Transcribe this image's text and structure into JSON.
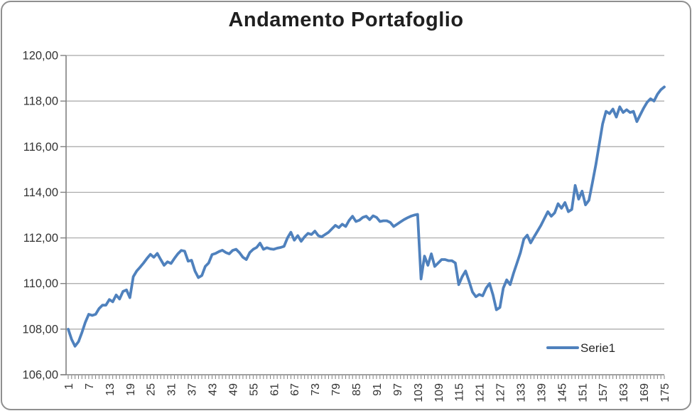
{
  "chart_data": {
    "type": "line",
    "title": "Andamento Portafoglio",
    "xlabel": "",
    "ylabel": "",
    "ylim": [
      106,
      120
    ],
    "grid": "horizontal",
    "legend_position": "inside-bottom-right",
    "x_tick_step": 6,
    "x_tick_labels": [
      "1",
      "7",
      "13",
      "19",
      "25",
      "31",
      "37",
      "43",
      "49",
      "55",
      "61",
      "67",
      "73",
      "79",
      "85",
      "91",
      "97",
      "103",
      "109",
      "115",
      "121",
      "127",
      "133",
      "139",
      "145",
      "151",
      "157",
      "163",
      "169",
      "175"
    ],
    "y_ticks": [
      {
        "value": 106,
        "label": "106,00"
      },
      {
        "value": 108,
        "label": "108,00"
      },
      {
        "value": 110,
        "label": "110,00"
      },
      {
        "value": 112,
        "label": "112,00"
      },
      {
        "value": 114,
        "label": "114,00"
      },
      {
        "value": 116,
        "label": "116,00"
      },
      {
        "value": 118,
        "label": "118,00"
      },
      {
        "value": 120,
        "label": "120,00"
      }
    ],
    "colors": {
      "series": "#4f81bd",
      "gridline": "#a6a6a6",
      "axis": "#808080",
      "text": "#333333",
      "title": "#1f1f1f",
      "frame_border": "#8f8f8f"
    },
    "series": [
      {
        "name": "Serie1",
        "color": "#4f81bd",
        "x_start": 1,
        "x_step": 1,
        "values": [
          108.0,
          107.55,
          107.25,
          107.45,
          107.85,
          108.3,
          108.65,
          108.6,
          108.65,
          108.9,
          109.05,
          109.05,
          109.3,
          109.2,
          109.5,
          109.32,
          109.65,
          109.72,
          109.38,
          110.3,
          110.55,
          110.72,
          110.9,
          111.1,
          111.28,
          111.15,
          111.32,
          111.05,
          110.8,
          110.95,
          110.88,
          111.1,
          111.3,
          111.45,
          111.42,
          110.98,
          111.02,
          110.55,
          110.26,
          110.35,
          110.75,
          110.9,
          111.27,
          111.32,
          111.4,
          111.46,
          111.36,
          111.3,
          111.45,
          111.5,
          111.35,
          111.15,
          111.05,
          111.36,
          111.5,
          111.58,
          111.77,
          111.5,
          111.57,
          111.52,
          111.5,
          111.55,
          111.58,
          111.63,
          112.0,
          112.25,
          111.9,
          112.1,
          111.85,
          112.05,
          112.2,
          112.15,
          112.3,
          112.1,
          112.05,
          112.15,
          112.25,
          112.4,
          112.55,
          112.45,
          112.6,
          112.5,
          112.77,
          112.95,
          112.72,
          112.78,
          112.9,
          112.95,
          112.8,
          112.97,
          112.9,
          112.72,
          112.75,
          112.75,
          112.68,
          112.5,
          112.6,
          112.7,
          112.8,
          112.88,
          112.95,
          113.0,
          113.03,
          110.2,
          111.2,
          110.8,
          111.3,
          110.75,
          110.9,
          111.05,
          111.05,
          111.0,
          111.0,
          110.9,
          109.95,
          110.3,
          110.55,
          110.1,
          109.63,
          109.42,
          109.52,
          109.46,
          109.8,
          110.0,
          109.5,
          108.85,
          108.95,
          109.8,
          110.16,
          109.95,
          110.45,
          110.9,
          111.35,
          111.95,
          112.12,
          111.78,
          112.05,
          112.3,
          112.55,
          112.85,
          113.15,
          112.95,
          113.1,
          113.5,
          113.3,
          113.55,
          113.15,
          113.25,
          114.3,
          113.7,
          114.05,
          113.45,
          113.65,
          114.4,
          115.2,
          116.1,
          117.0,
          117.55,
          117.45,
          117.65,
          117.3,
          117.75,
          117.5,
          117.62,
          117.5,
          117.55,
          117.1,
          117.4,
          117.7,
          117.95,
          118.1,
          118.0,
          118.3,
          118.5,
          118.62
        ]
      }
    ]
  }
}
